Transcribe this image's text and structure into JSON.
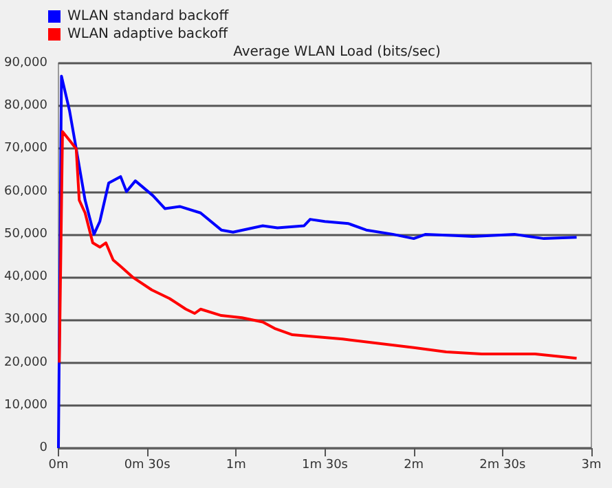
{
  "chart_data": {
    "type": "line",
    "title": "Average WLAN Load (bits/sec)",
    "xlim": [
      0,
      3
    ],
    "xticks": [
      {
        "value": 0,
        "label": "0m"
      },
      {
        "value": 0.5,
        "label": "0m 30s"
      },
      {
        "value": 1,
        "label": "1m"
      },
      {
        "value": 1.5,
        "label": "1m 30s"
      },
      {
        "value": 2,
        "label": "2m"
      },
      {
        "value": 2.5,
        "label": "2m 30s"
      },
      {
        "value": 3,
        "label": "3m"
      }
    ],
    "ylim": [
      0,
      90000
    ],
    "yticks": [
      {
        "value": 0,
        "label": "0"
      },
      {
        "value": 10000,
        "label": "10,000"
      },
      {
        "value": 20000,
        "label": "20,000"
      },
      {
        "value": 30000,
        "label": "30,000"
      },
      {
        "value": 40000,
        "label": "40,000"
      },
      {
        "value": 50000,
        "label": "50,000"
      },
      {
        "value": 60000,
        "label": "60,000"
      },
      {
        "value": 70000,
        "label": "70,000"
      },
      {
        "value": 80000,
        "label": "80,000"
      },
      {
        "value": 90000,
        "label": "90,000"
      }
    ],
    "grid": "y",
    "legend": "top left",
    "marker": "none",
    "line_style": "solid",
    "series": [
      {
        "name": "WLAN standard backoff",
        "color": "#0000ff",
        "x": [
          0,
          0.017,
          0.062,
          0.1,
          0.15,
          0.2,
          0.233,
          0.283,
          0.35,
          0.383,
          0.433,
          0.533,
          0.6,
          0.683,
          0.8,
          0.917,
          0.983,
          1.15,
          1.233,
          1.383,
          1.417,
          1.5,
          1.633,
          1.733,
          1.883,
          2,
          2.067,
          2.233,
          2.333,
          2.567,
          2.733,
          2.917
        ],
        "values": [
          0,
          87000,
          79000,
          70000,
          58000,
          50000,
          53000,
          62000,
          63500,
          60000,
          62500,
          59000,
          56000,
          56500,
          55000,
          51000,
          50500,
          52000,
          51500,
          52000,
          53500,
          53000,
          52500,
          51000,
          50000,
          49000,
          50000,
          49700,
          49500,
          50000,
          49000,
          49300
        ]
      },
      {
        "name": "WLAN adaptive backoff",
        "color": "#ff0000",
        "x": [
          0.005,
          0.023,
          0.062,
          0.1,
          0.117,
          0.15,
          0.193,
          0.233,
          0.267,
          0.308,
          0.35,
          0.417,
          0.525,
          0.625,
          0.717,
          0.767,
          0.8,
          0.917,
          1.033,
          1.15,
          1.217,
          1.317,
          1.6,
          2,
          2.183,
          2.383,
          2.683,
          2.917
        ],
        "values": [
          20000,
          74000,
          72000,
          70000,
          58000,
          55000,
          48000,
          47000,
          48000,
          44000,
          42500,
          40000,
          37000,
          35000,
          32500,
          31500,
          32500,
          31000,
          30500,
          29500,
          28000,
          26500,
          25500,
          23500,
          22500,
          22000,
          22000,
          21000
        ]
      }
    ]
  }
}
